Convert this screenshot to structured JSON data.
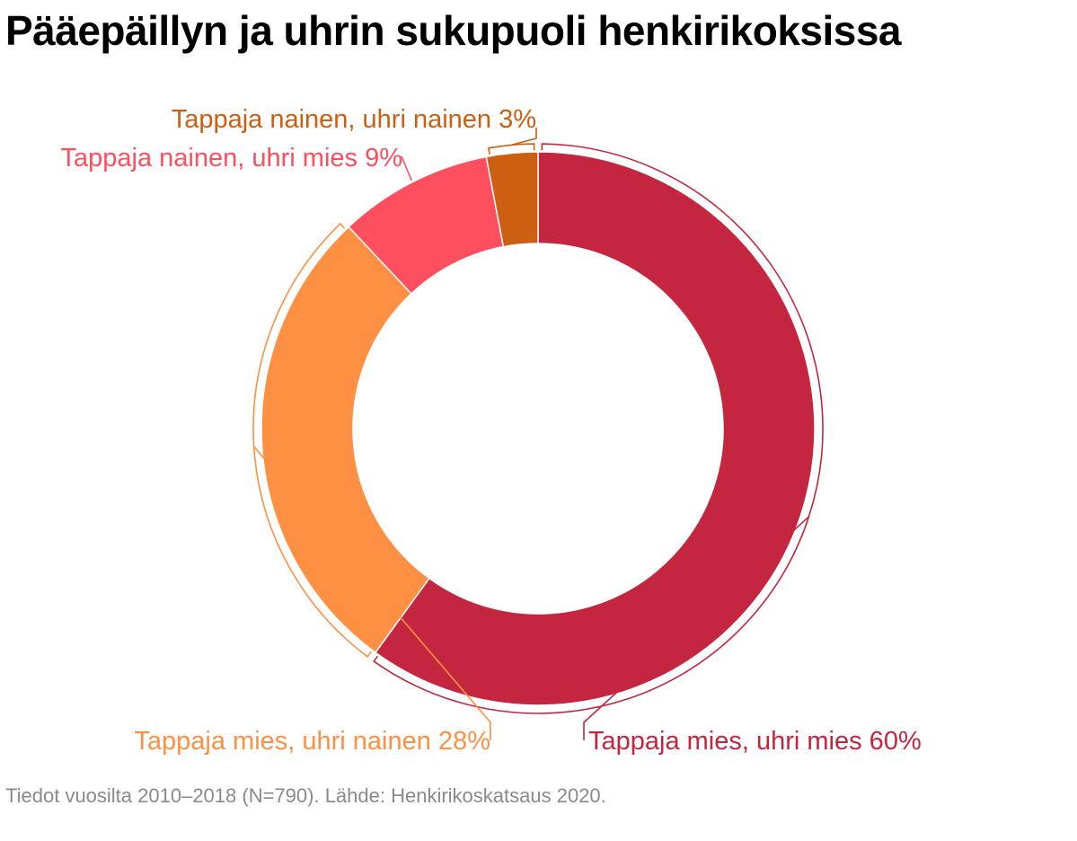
{
  "title": "Pääepäillyn ja uhrin sukupuoli henkirikoksissa",
  "footer": "Tiedot vuosilta 2010–2018 (N=790). Lähde: Henkirikoskatsaus 2020.",
  "chart_data": {
    "type": "pie",
    "donut": true,
    "title": "Pääepäillyn ja uhrin sukupuoli henkirikoksissa",
    "slices": [
      {
        "label": "Tappaja mies, uhri mies 60%",
        "value": 60,
        "color": "#c5263f"
      },
      {
        "label": "Tappaja mies, uhri nainen 28%",
        "value": 28,
        "color": "#fd9043"
      },
      {
        "label": "Tappaja nainen, uhri mies 9%",
        "value": 9,
        "color": "#fe4f5f"
      },
      {
        "label": "Tappaja nainen, uhri nainen 3%",
        "value": 3,
        "color": "#cd5f13"
      }
    ],
    "legend": "none"
  }
}
